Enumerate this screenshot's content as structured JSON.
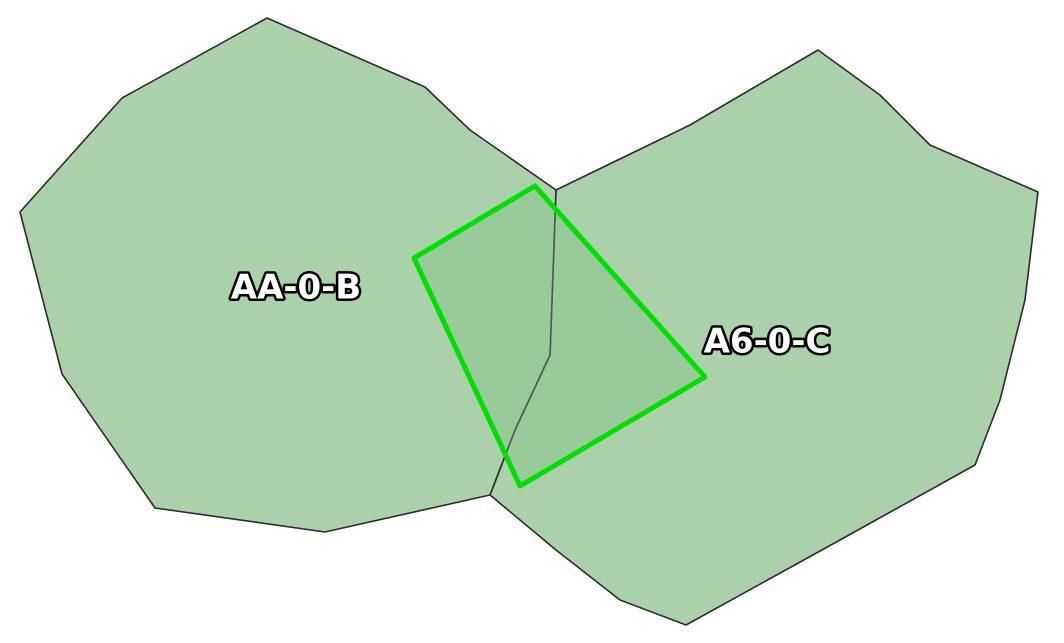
{
  "map": {
    "regions": [
      {
        "id": "region-aa-0-b",
        "label": "AA-0-B"
      },
      {
        "id": "region-a6-0-c",
        "label": "A6-0-C"
      }
    ],
    "selection": {
      "shape": "quadrilateral"
    },
    "colors": {
      "region_fill": "#aad1aa",
      "region_stroke": "#2b2b2b",
      "selection_stroke": "#00e000",
      "label_fill": "#ffffff",
      "label_outline": "#000000",
      "background": "#ffffff"
    }
  }
}
